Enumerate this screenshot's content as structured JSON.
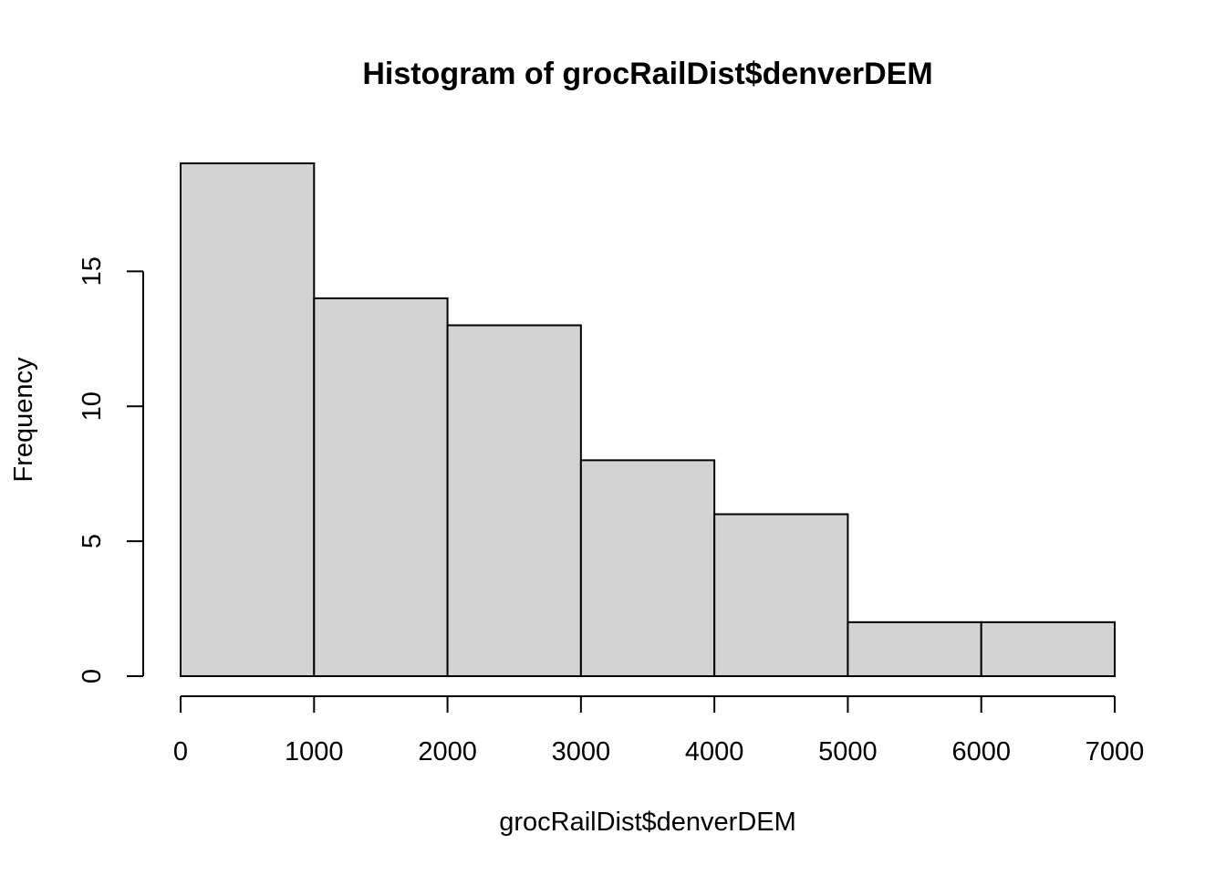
{
  "chart_data": {
    "type": "bar",
    "title": "Histogram of grocRailDist$denverDEM",
    "xlabel": "grocRailDist$denverDEM",
    "ylabel": "Frequency",
    "bins": [
      {
        "start": 0,
        "end": 1000,
        "count": 19
      },
      {
        "start": 1000,
        "end": 2000,
        "count": 14
      },
      {
        "start": 2000,
        "end": 3000,
        "count": 13
      },
      {
        "start": 3000,
        "end": 4000,
        "count": 8
      },
      {
        "start": 4000,
        "end": 5000,
        "count": 6
      },
      {
        "start": 5000,
        "end": 6000,
        "count": 2
      },
      {
        "start": 6000,
        "end": 7000,
        "count": 2
      }
    ],
    "xlim": [
      0,
      7000
    ],
    "ylim": [
      0,
      19
    ],
    "x_ticks": [
      0,
      1000,
      2000,
      3000,
      4000,
      5000,
      6000,
      7000
    ],
    "x_tick_labels": [
      "0",
      "1000",
      "2000",
      "3000",
      "4000",
      "5000",
      "6000",
      "7000"
    ],
    "y_ticks": [
      0,
      5,
      10,
      15
    ],
    "y_tick_labels": [
      "0",
      "5",
      "10",
      "15"
    ],
    "grid": false,
    "legend": "none",
    "colors": {
      "bar_fill": "#d3d3d3",
      "bar_stroke": "#000000",
      "background": "#ffffff"
    }
  }
}
